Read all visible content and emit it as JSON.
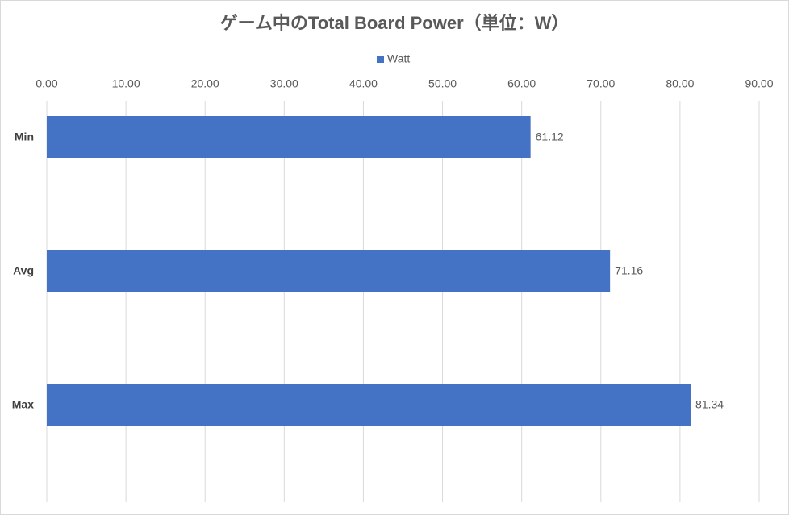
{
  "chart_data": {
    "type": "bar",
    "orientation": "horizontal",
    "title": "ゲーム中のTotal Board Power（単位：W）",
    "categories": [
      "Min",
      "Avg",
      "Max"
    ],
    "series": [
      {
        "name": "Watt",
        "color": "#4472c4",
        "values": [
          61.12,
          71.16,
          81.34
        ]
      }
    ],
    "xlim": [
      0,
      90
    ],
    "xticks": [
      {
        "value": 0,
        "label": "0.00"
      },
      {
        "value": 10,
        "label": "10.00"
      },
      {
        "value": 20,
        "label": "20.00"
      },
      {
        "value": 30,
        "label": "30.00"
      },
      {
        "value": 40,
        "label": "40.00"
      },
      {
        "value": 50,
        "label": "50.00"
      },
      {
        "value": 60,
        "label": "60.00"
      },
      {
        "value": 70,
        "label": "70.00"
      },
      {
        "value": 80,
        "label": "80.00"
      },
      {
        "value": 90,
        "label": "90.00"
      }
    ],
    "grid": true,
    "legend": "top",
    "data_labels": true
  }
}
